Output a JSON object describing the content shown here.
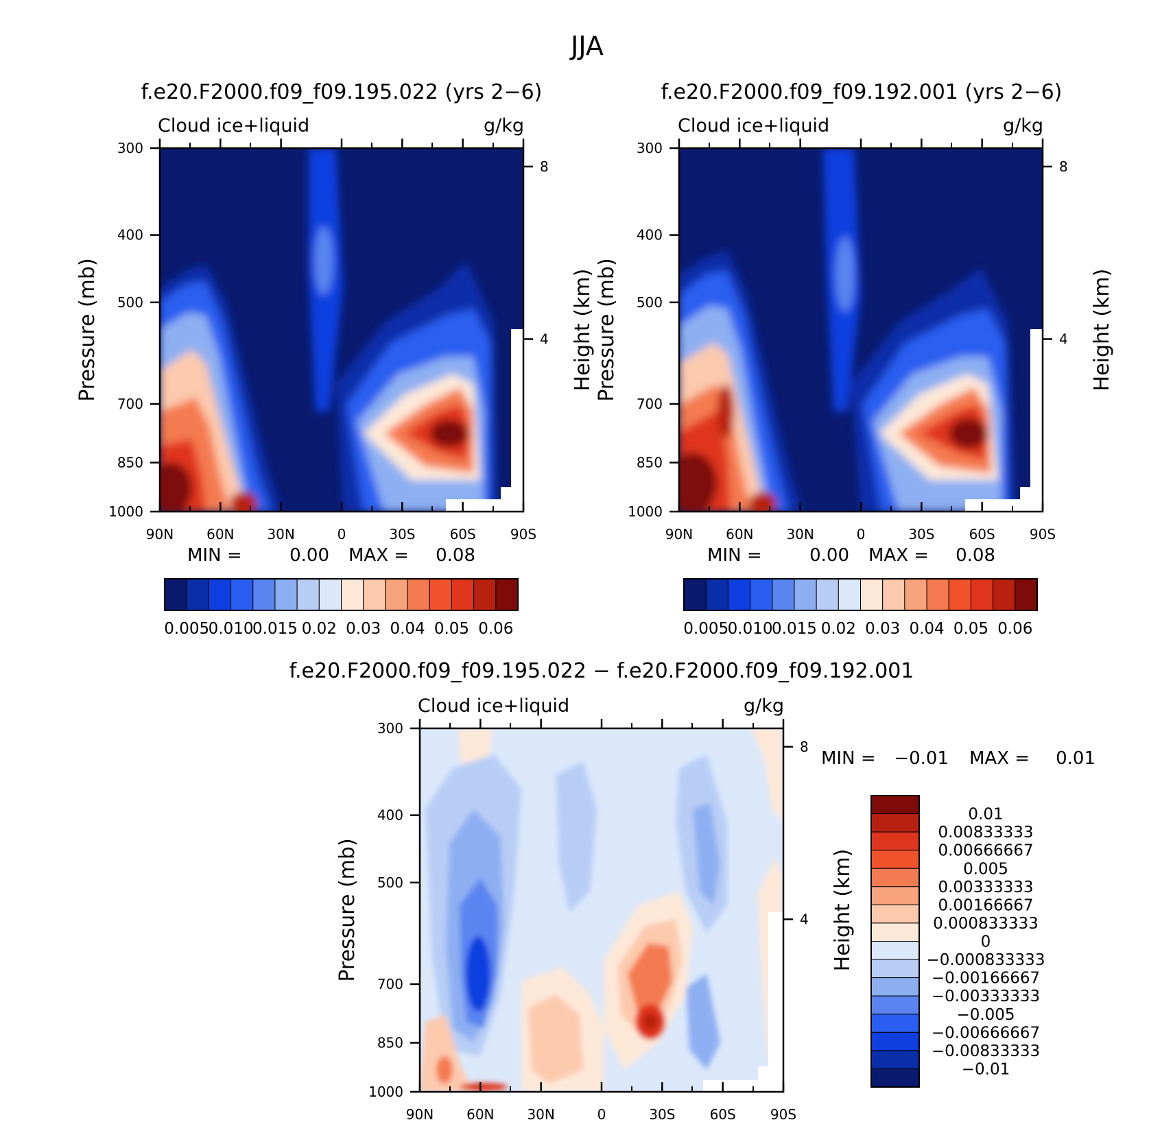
{
  "figure_title": "JJA",
  "colors": {
    "sequential": [
      "#0a1a6e",
      "#0a2eaa",
      "#0f3fe0",
      "#2a5ef0",
      "#5a85f0",
      "#8daff2",
      "#b8cdf5",
      "#dbe8fa",
      "#fde8d8",
      "#fcc9ad",
      "#f7a37e",
      "#f47a4f",
      "#f0532b",
      "#e0351d",
      "#b8200f",
      "#7e0a0a"
    ],
    "diverging": [
      "#7e0a0a",
      "#b8200f",
      "#e0351d",
      "#f0532b",
      "#f47a4f",
      "#f7a37e",
      "#fcc9ad",
      "#fde8d8",
      "#dbe8fa",
      "#b8cdf5",
      "#8daff2",
      "#5a85f0",
      "#2a5ef0",
      "#0f3fe0",
      "#0a2eaa",
      "#0a1a6e"
    ]
  },
  "chart_data": [
    {
      "type": "heatmap",
      "title": "f.e20.F2000.f09_f09.195.022 (yrs 2−6)",
      "left_label": "Cloud  ice+liquid",
      "right_label": "g/kg",
      "ylabel": "Pressure (mb)",
      "y2label": "Height (km)",
      "x_ticks": [
        "90N",
        "60N",
        "30N",
        "0",
        "30S",
        "60S",
        "90S"
      ],
      "y_ticks": [
        "300",
        "400",
        "500",
        "700",
        "850",
        "1000"
      ],
      "y2_ticks": [
        "8",
        "4"
      ],
      "stats": {
        "min_label": "MIN =",
        "min": "0.00",
        "max_label": "MAX =",
        "max": "0.08"
      },
      "colorbar_labels": [
        "0.005",
        "0.010",
        "0.015",
        "0.02",
        "0.03",
        "0.04",
        "0.05",
        "0.06"
      ],
      "features": [
        {
          "lat": 82,
          "p": 960,
          "value": 0.08
        },
        {
          "lat": 70,
          "p": 850,
          "value": 0.045
        },
        {
          "lat": 52,
          "p": 990,
          "value": 0.06
        },
        {
          "lat": -60,
          "p": 850,
          "value": 0.08
        },
        {
          "lat": -25,
          "p": 850,
          "value": 0.03
        }
      ]
    },
    {
      "type": "heatmap",
      "title": "f.e20.F2000.f09_f09.192.001 (yrs 2−6)",
      "left_label": "Cloud  ice+liquid",
      "right_label": "g/kg",
      "ylabel": "Pressure (mb)",
      "y2label": "Height (km)",
      "x_ticks": [
        "90N",
        "60N",
        "30N",
        "0",
        "30S",
        "60S",
        "90S"
      ],
      "y_ticks": [
        "300",
        "400",
        "500",
        "700",
        "850",
        "1000"
      ],
      "y2_ticks": [
        "8",
        "4"
      ],
      "stats": {
        "min_label": "MIN =",
        "min": "0.00",
        "max_label": "MAX =",
        "max": "0.08"
      },
      "colorbar_labels": [
        "0.005",
        "0.010",
        "0.015",
        "0.02",
        "0.03",
        "0.04",
        "0.05",
        "0.06"
      ],
      "features": [
        {
          "lat": 82,
          "p": 960,
          "value": 0.08
        },
        {
          "lat": 66,
          "p": 850,
          "value": 0.06
        },
        {
          "lat": 52,
          "p": 990,
          "value": 0.06
        },
        {
          "lat": -57,
          "p": 850,
          "value": 0.08
        },
        {
          "lat": -25,
          "p": 850,
          "value": 0.03
        }
      ]
    },
    {
      "type": "heatmap",
      "title": "f.e20.F2000.f09_f09.195.022 − f.e20.F2000.f09_f09.192.001",
      "left_label": "Cloud  ice+liquid",
      "right_label": "g/kg",
      "ylabel": "Pressure (mb)",
      "y2label": "Height (km)",
      "x_ticks": [
        "90N",
        "60N",
        "30N",
        "0",
        "30S",
        "60S",
        "90S"
      ],
      "y_ticks": [
        "300",
        "400",
        "500",
        "700",
        "850",
        "1000"
      ],
      "y2_ticks": [
        "8",
        "4"
      ],
      "stats": {
        "min_label": "MIN =",
        "min": "−0.01",
        "max_label": "MAX =",
        "max": "0.01"
      },
      "colorbar_labels": [
        "0.01",
        "0.00833333",
        "0.00666667",
        "0.005",
        "0.00333333",
        "0.00166667",
        "0.000833333",
        "0",
        "−0.000833333",
        "−0.00166667",
        "−0.00333333",
        "−0.005",
        "−0.00666667",
        "−0.00833333",
        "−0.01"
      ],
      "features": [
        {
          "lat": 62,
          "p": 840,
          "value": -0.009
        },
        {
          "lat": -25,
          "p": 860,
          "value": 0.009
        },
        {
          "lat": 10,
          "p": 940,
          "value": 0.003
        },
        {
          "lat": 80,
          "p": 960,
          "value": 0.005
        }
      ]
    }
  ]
}
